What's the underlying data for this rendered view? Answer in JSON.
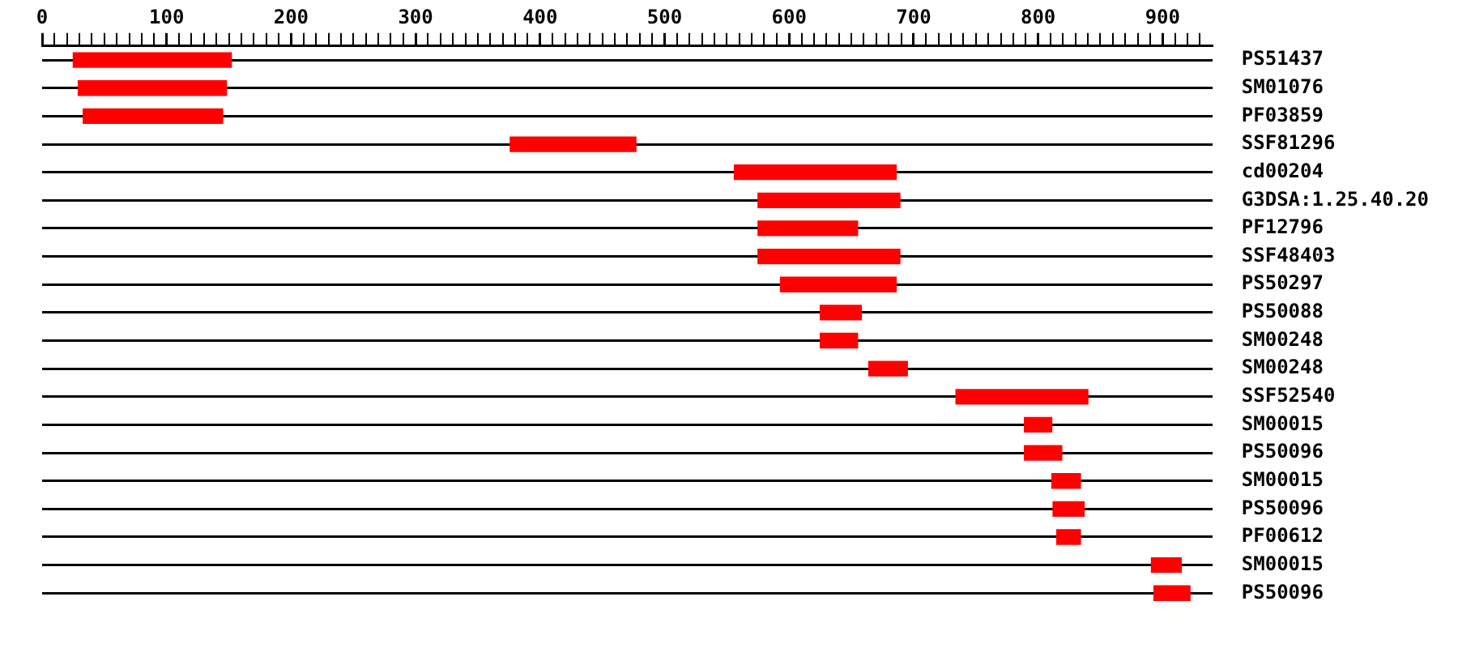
{
  "chart_data": {
    "type": "bar",
    "orientation": "horizontal",
    "grid": "y",
    "color": "#ff0000",
    "categories": [
      "PS51437",
      "SM01076",
      "PF03859",
      "SSF81296",
      "cd00204",
      "G3DSA:1.25.40.20",
      "PF12796",
      "SSF48403",
      "PS50297",
      "PS50088",
      "SM00248",
      "SM00248",
      "SSF52540",
      "SM00015",
      "PS50096",
      "SM00015",
      "PS50096",
      "PF00612",
      "SM00015",
      "PS50096"
    ],
    "base": [
      25,
      29,
      33,
      376,
      556,
      575,
      575,
      575,
      593,
      625,
      625,
      664,
      734,
      789,
      789,
      811,
      812,
      815,
      891,
      893
    ],
    "values": [
      127,
      119,
      112,
      101,
      130,
      114,
      80,
      114,
      93,
      33,
      30,
      31,
      106,
      22,
      30,
      23,
      25,
      19,
      24,
      29
    ],
    "xlim": [
      0,
      940
    ],
    "xticks": [
      0,
      {
        "value": 10,
        "label": null
      },
      {
        "value": 20,
        "label": null
      },
      {
        "value": 30,
        "label": null
      },
      {
        "value": 40,
        "label": null
      },
      {
        "value": 50,
        "label": null
      },
      {
        "value": 60,
        "label": null
      },
      {
        "value": 70,
        "label": null
      },
      {
        "value": 80,
        "label": null
      },
      {
        "value": 90,
        "label": null
      },
      100,
      {
        "value": 110,
        "label": null
      },
      {
        "value": 120,
        "label": null
      },
      {
        "value": 130,
        "label": null
      },
      {
        "value": 140,
        "label": null
      },
      {
        "value": 150,
        "label": null
      },
      {
        "value": 160,
        "label": null
      },
      {
        "value": 170,
        "label": null
      },
      {
        "value": 180,
        "label": null
      },
      {
        "value": 190,
        "label": null
      },
      200,
      {
        "value": 210,
        "label": null
      },
      {
        "value": 220,
        "label": null
      },
      {
        "value": 230,
        "label": null
      },
      {
        "value": 240,
        "label": null
      },
      {
        "value": 250,
        "label": null
      },
      {
        "value": 260,
        "label": null
      },
      {
        "value": 270,
        "label": null
      },
      {
        "value": 280,
        "label": null
      },
      {
        "value": 290,
        "label": null
      },
      300,
      {
        "value": 310,
        "label": null
      },
      {
        "value": 320,
        "label": null
      },
      {
        "value": 330,
        "label": null
      },
      {
        "value": 340,
        "label": null
      },
      {
        "value": 350,
        "label": null
      },
      {
        "value": 360,
        "label": null
      },
      {
        "value": 370,
        "label": null
      },
      {
        "value": 380,
        "label": null
      },
      {
        "value": 390,
        "label": null
      },
      400,
      {
        "value": 410,
        "label": null
      },
      {
        "value": 420,
        "label": null
      },
      {
        "value": 430,
        "label": null
      },
      {
        "value": 440,
        "label": null
      },
      {
        "value": 450,
        "label": null
      },
      {
        "value": 460,
        "label": null
      },
      {
        "value": 470,
        "label": null
      },
      {
        "value": 480,
        "label": null
      },
      {
        "value": 490,
        "label": null
      },
      500,
      {
        "value": 510,
        "label": null
      },
      {
        "value": 520,
        "label": null
      },
      {
        "value": 530,
        "label": null
      },
      {
        "value": 540,
        "label": null
      },
      {
        "value": 550,
        "label": null
      },
      {
        "value": 560,
        "label": null
      },
      {
        "value": 570,
        "label": null
      },
      {
        "value": 580,
        "label": null
      },
      {
        "value": 590,
        "label": null
      },
      600,
      {
        "value": 610,
        "label": null
      },
      {
        "value": 620,
        "label": null
      },
      {
        "value": 630,
        "label": null
      },
      {
        "value": 640,
        "label": null
      },
      {
        "value": 650,
        "label": null
      },
      {
        "value": 660,
        "label": null
      },
      {
        "value": 670,
        "label": null
      },
      {
        "value": 680,
        "label": null
      },
      {
        "value": 690,
        "label": null
      },
      700,
      {
        "value": 710,
        "label": null
      },
      {
        "value": 720,
        "label": null
      },
      {
        "value": 730,
        "label": null
      },
      {
        "value": 740,
        "label": null
      },
      {
        "value": 750,
        "label": null
      },
      {
        "value": 760,
        "label": null
      },
      {
        "value": 770,
        "label": null
      },
      {
        "value": 780,
        "label": null
      },
      {
        "value": 790,
        "label": null
      },
      800,
      {
        "value": 810,
        "label": null
      },
      {
        "value": 820,
        "label": null
      },
      {
        "value": 830,
        "label": null
      },
      {
        "value": 840,
        "label": null
      },
      {
        "value": 850,
        "label": null
      },
      {
        "value": 860,
        "label": null
      },
      {
        "value": 870,
        "label": null
      },
      {
        "value": 880,
        "label": null
      },
      {
        "value": 890,
        "label": null
      },
      900,
      {
        "value": 910,
        "label": null
      },
      {
        "value": 920,
        "label": null
      },
      {
        "value": 930,
        "label": null
      }
    ]
  }
}
